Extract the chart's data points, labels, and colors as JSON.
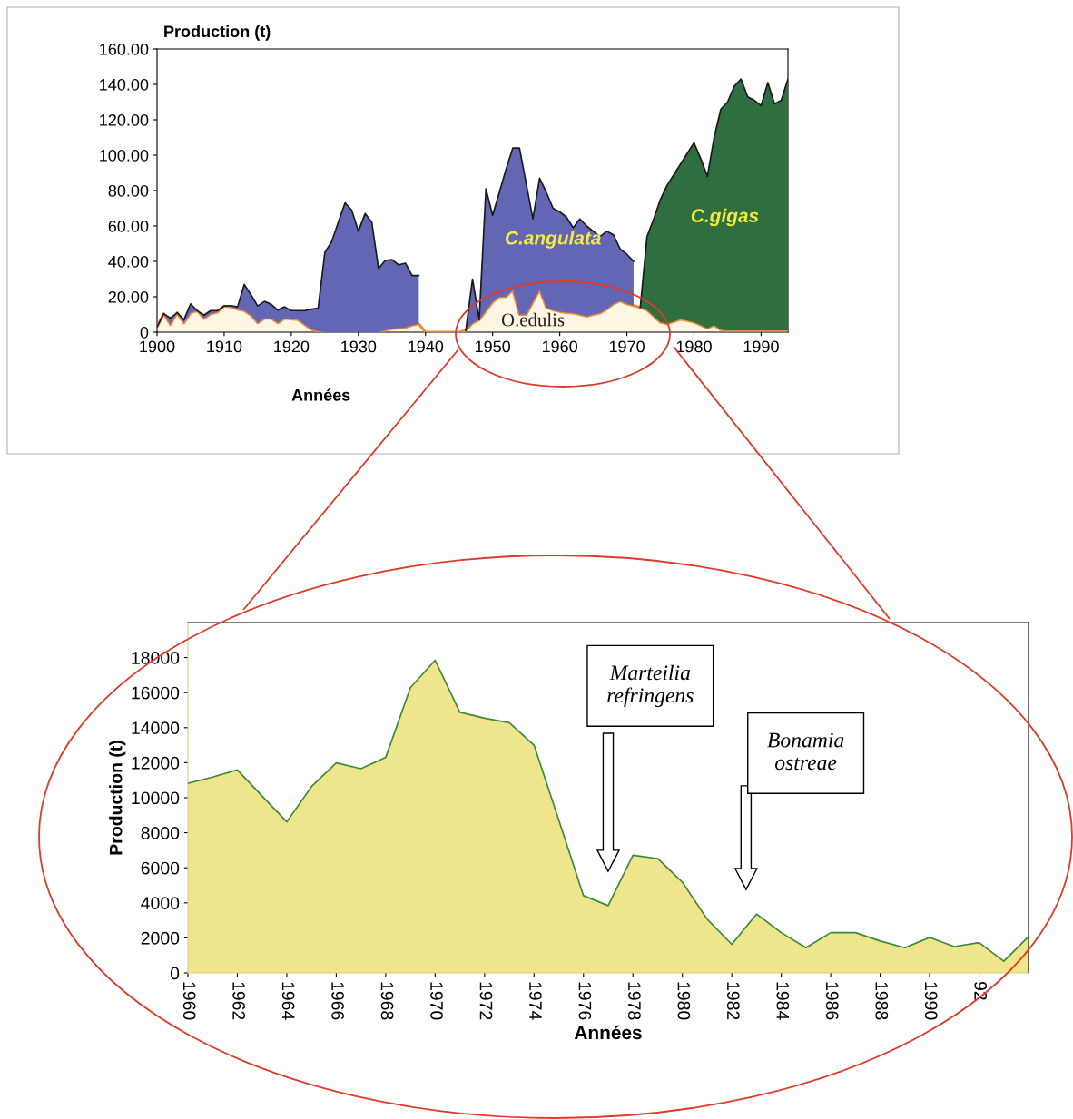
{
  "chart_data": [
    {
      "type": "area",
      "stacked": true,
      "ylabel": "Production (t)",
      "xlabel": "Années",
      "legend": false,
      "grid": false,
      "x": [
        1900,
        1901,
        1902,
        1903,
        1904,
        1905,
        1906,
        1907,
        1908,
        1909,
        1910,
        1911,
        1912,
        1913,
        1914,
        1915,
        1916,
        1917,
        1918,
        1919,
        1920,
        1921,
        1922,
        1923,
        1924,
        1925,
        1926,
        1927,
        1928,
        1929,
        1930,
        1931,
        1932,
        1933,
        1934,
        1935,
        1936,
        1937,
        1938,
        1939,
        1940,
        1941,
        1942,
        1943,
        1944,
        1945,
        1946,
        1947,
        1948,
        1949,
        1950,
        1951,
        1952,
        1953,
        1954,
        1955,
        1956,
        1957,
        1958,
        1959,
        1960,
        1961,
        1962,
        1963,
        1964,
        1965,
        1966,
        1967,
        1968,
        1969,
        1970,
        1971,
        1972,
        1973,
        1974,
        1975,
        1976,
        1977,
        1978,
        1979,
        1980,
        1981,
        1982,
        1983,
        1984,
        1985,
        1986,
        1987,
        1988,
        1989,
        1990,
        1991,
        1992,
        1993,
        1994
      ],
      "xlim": [
        1900,
        1994
      ],
      "xticks": [
        1900,
        1910,
        1920,
        1930,
        1940,
        1950,
        1960,
        1970,
        1980,
        1990
      ],
      "ylim": [
        0,
        160
      ],
      "yticks": [
        0,
        {
          "value": 20,
          "label": "20.00"
        },
        {
          "value": 40,
          "label": "40.00"
        },
        {
          "value": 60,
          "label": "60.00"
        },
        {
          "value": 80,
          "label": "80.00"
        },
        {
          "value": 100,
          "label": "100.00"
        },
        {
          "value": 120,
          "label": "120.00"
        },
        {
          "value": 140,
          "label": "140.00"
        },
        {
          "value": 160,
          "label": "160.00"
        }
      ],
      "series": [
        {
          "name": "O.edulis",
          "color": "#fcf6e2",
          "values": [
            3,
            10.4,
            4.3,
            11,
            5.2,
            11,
            12,
            7.8,
            10.4,
            11.3,
            14.8,
            14.3,
            13,
            12.2,
            9.6,
            5.2,
            7.8,
            7.8,
            5.2,
            7.8,
            7.5,
            7,
            4.3,
            1.7,
            0.5,
            0,
            0,
            0,
            0,
            0,
            0,
            0,
            0,
            0,
            1.2,
            2,
            2.3,
            2.6,
            4,
            4.7,
            0,
            0,
            0,
            0,
            0,
            0,
            1,
            5,
            7,
            12,
            17,
            20,
            20,
            24,
            10,
            10,
            17,
            24,
            14,
            12.5,
            11.6,
            11,
            10.8,
            10,
            9,
            10,
            10.8,
            13,
            16,
            17.6,
            16,
            15,
            14,
            12.5,
            9,
            5.6,
            4.8,
            6,
            7.3,
            6.5,
            5.6,
            4,
            2.2,
            4,
            1.4,
            1,
            1,
            1,
            1,
            1,
            1,
            1,
            1,
            1,
            1
          ]
        },
        {
          "name": "C.angulata",
          "color": "#6266b4",
          "values": [
            0,
            0,
            3.7,
            0,
            1.8,
            5,
            0,
            1.8,
            1.8,
            0.9,
            0,
            0.7,
            1.3,
            14.8,
            11.4,
            9.6,
            9.6,
            7.9,
            7.3,
            6.5,
            4.7,
            5.2,
            7.9,
            11.3,
            13.1,
            45,
            51,
            62,
            73,
            69,
            57,
            67,
            62,
            36,
            39.3,
            39,
            35.7,
            36.4,
            28,
            27.3,
            null,
            null,
            null,
            null,
            null,
            null,
            0,
            25,
            0,
            69,
            49,
            59,
            72,
            80,
            94,
            74,
            47,
            63,
            65,
            57.5,
            56.4,
            54,
            48.2,
            54,
            51,
            47,
            43.2,
            44,
            39,
            29.4,
            28,
            25,
            null,
            null,
            null,
            null,
            null,
            null,
            null,
            null,
            null,
            null,
            null,
            null,
            null,
            null,
            null,
            null,
            null,
            null,
            null,
            null,
            null,
            null,
            null
          ]
        },
        {
          "name": "C.gigas",
          "color": "#2f6e3f",
          "values": [
            null,
            null,
            null,
            null,
            null,
            null,
            null,
            null,
            null,
            null,
            null,
            null,
            null,
            null,
            null,
            null,
            null,
            null,
            null,
            null,
            null,
            null,
            null,
            null,
            null,
            null,
            null,
            null,
            null,
            null,
            null,
            null,
            null,
            null,
            null,
            null,
            null,
            null,
            null,
            null,
            null,
            null,
            null,
            null,
            null,
            null,
            null,
            null,
            null,
            null,
            null,
            null,
            null,
            null,
            null,
            null,
            null,
            null,
            null,
            null,
            null,
            null,
            null,
            null,
            null,
            null,
            null,
            null,
            null,
            null,
            null,
            null,
            0,
            41.5,
            55,
            69.4,
            78.2,
            83,
            87.7,
            94.5,
            101.4,
            94,
            85.8,
            106,
            124.6,
            129,
            138,
            142,
            132,
            130,
            127,
            140,
            128,
            130,
            142
          ]
        }
      ]
    },
    {
      "type": "area",
      "ylabel": "Production (t)",
      "xlabel": "Années",
      "legend": false,
      "grid": false,
      "x": [
        1960,
        1961,
        1962,
        1963,
        1964,
        1965,
        1966,
        1967,
        1968,
        1969,
        1970,
        1971,
        1972,
        1973,
        1974,
        1975,
        1976,
        1977,
        1978,
        1979,
        1980,
        1981,
        1982,
        1983,
        1984,
        1985,
        1986,
        1987,
        1988,
        1989,
        1990,
        1991,
        1992,
        1993,
        1994
      ],
      "xlim": [
        1960,
        1994
      ],
      "xticks": [
        1960,
        1962,
        1964,
        1966,
        1968,
        1970,
        1972,
        1974,
        1976,
        1978,
        1980,
        1982,
        1984,
        1986,
        1988,
        1990,
        {
          "value": 1992,
          "label": "92"
        }
      ],
      "ylim": [
        0,
        20000
      ],
      "yticks": [
        0,
        2000,
        4000,
        6000,
        8000,
        10000,
        12000,
        14000,
        16000,
        18000
      ],
      "series": [
        {
          "color": "#efe58c",
          "values": [
            10820,
            11180,
            11590,
            10100,
            8620,
            10640,
            11990,
            11660,
            12300,
            16280,
            17850,
            14880,
            14540,
            14280,
            13000,
            8730,
            4410,
            3840,
            6720,
            6530,
            5180,
            3070,
            1630,
            3360,
            2300,
            1440,
            2300,
            2300,
            1820,
            1440,
            2020,
            1500,
            1730,
            670,
            2070
          ]
        }
      ],
      "annotations": [
        "Marteilia\nrefringens",
        "Bonamia\nostreae"
      ]
    }
  ]
}
